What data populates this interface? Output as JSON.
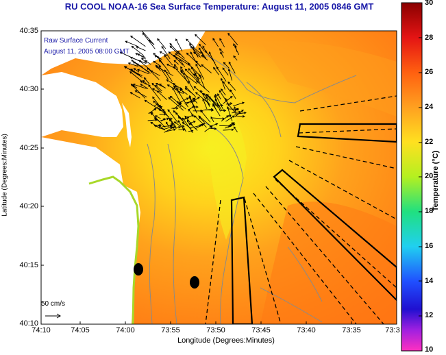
{
  "title": "RU COOL  NOAA-16  Sea Surface Temperature:  August 11, 2005 0846 GMT",
  "legend": {
    "line1": "Raw Surface Current",
    "line2": "August 11, 2005 08:00 GMT"
  },
  "scale_label": "50 cm/s",
  "axes": {
    "ylabel": "Latitude (Degrees:Minutes)",
    "xlabel": "Longitude (Degrees:Minutes)",
    "yticks": [
      "40:35",
      "40:30",
      "40:25",
      "40:20",
      "40:15",
      "40:10"
    ],
    "xticks": [
      "74:10",
      "74:05",
      "74:00",
      "73:55",
      "73:50",
      "73:45",
      "73:40",
      "73:35",
      "73:3"
    ]
  },
  "colorbar": {
    "label": "Temperature (°C)",
    "ticks": [
      "30",
      "28",
      "26",
      "24",
      "22",
      "20",
      "18",
      "16",
      "14",
      "12",
      "10"
    ]
  },
  "colors": {
    "land": "#ffffff",
    "water_warm": "#ff8c1a",
    "water_mid": "#ffc41a",
    "water_cool": "#f5f020",
    "contour": "#8a8a8a",
    "title_text": "#1a1aa8"
  }
}
